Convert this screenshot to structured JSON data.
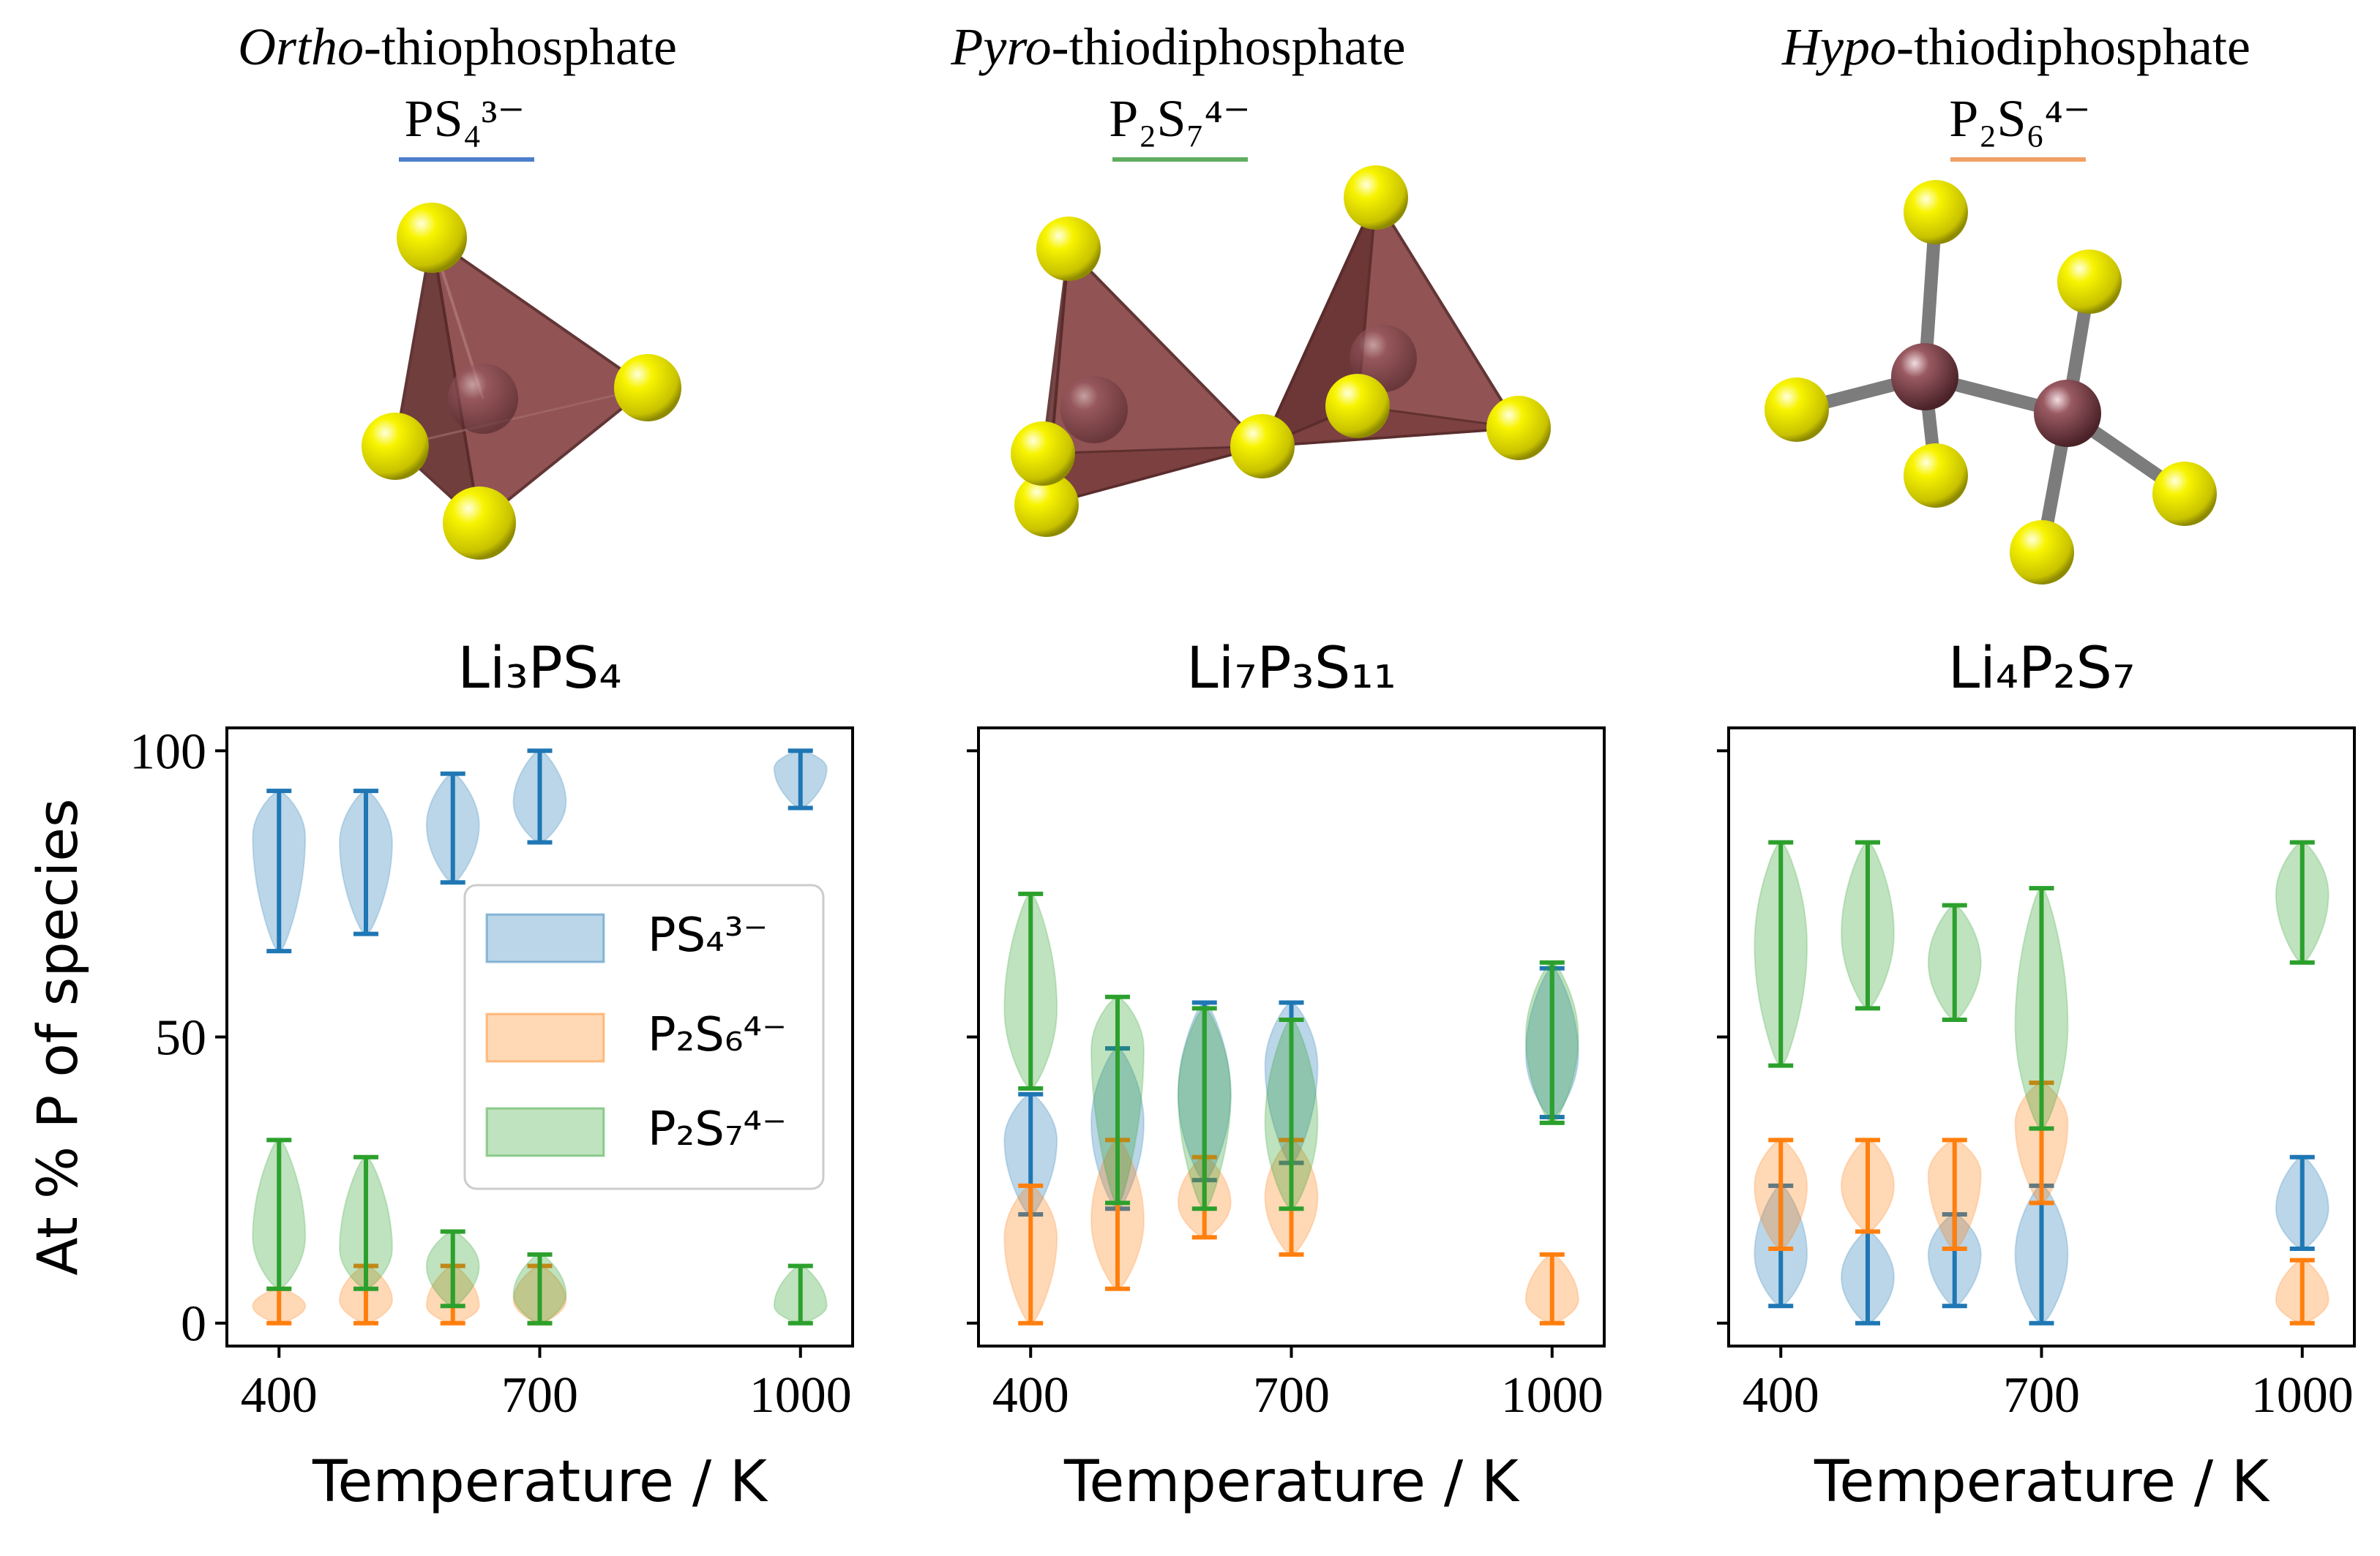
{
  "molecules": [
    {
      "prefix": "Ortho",
      "suffix": "-thiophosphate",
      "formula": "PS₄³⁻",
      "underline_color": "#4d7ecc"
    },
    {
      "prefix": "Pyro",
      "suffix": "-thiodiphosphate",
      "formula": "P₂S₇⁴⁻",
      "underline_color": "#5fae5f"
    },
    {
      "prefix": "Hypo",
      "suffix": "-thiodiphosphate",
      "formula": "P₂S₆⁴⁻",
      "underline_color": "#f0a064"
    }
  ],
  "colors": {
    "PS4": "#1f77b4",
    "P2S6": "#ff7f0e",
    "P2S7": "#2ca02c",
    "sulfur": "#f4f000",
    "phosphorus": "#8a4a52",
    "bond": "#808080"
  },
  "chart_data": [
    {
      "type": "violin",
      "title": "Li₃PS₄",
      "xlabel": "Temperature / K",
      "ylabel": "At % P of species",
      "xticks": [
        400,
        700,
        1000
      ],
      "yticks": [
        0,
        50,
        100
      ],
      "xlim": [
        340,
        1060
      ],
      "ylim": [
        -4,
        104
      ],
      "legend_position": "inside-center",
      "series": [
        {
          "name": "PS₄³⁻",
          "key": "PS4",
          "points": [
            {
              "x": 400,
              "min": 65,
              "max": 93,
              "peak": 85
            },
            {
              "x": 500,
              "min": 68,
              "max": 93,
              "peak": 84
            },
            {
              "x": 600,
              "min": 77,
              "max": 96,
              "peak": 87
            },
            {
              "x": 700,
              "min": 84,
              "max": 100,
              "peak": 91
            },
            {
              "x": 1000,
              "min": 90,
              "max": 100,
              "peak": 97
            }
          ]
        },
        {
          "name": "P₂S₆⁴⁻",
          "key": "P2S6",
          "points": [
            {
              "x": 400,
              "min": 0,
              "max": 6,
              "peak": 3
            },
            {
              "x": 500,
              "min": 0,
              "max": 10,
              "peak": 4
            },
            {
              "x": 600,
              "min": 0,
              "max": 10,
              "peak": 3
            },
            {
              "x": 700,
              "min": 0,
              "max": 10,
              "peak": 4
            }
          ]
        },
        {
          "name": "P₂S₇⁴⁻",
          "key": "P2S7",
          "points": [
            {
              "x": 400,
              "min": 6,
              "max": 32,
              "peak": 15
            },
            {
              "x": 500,
              "min": 6,
              "max": 29,
              "peak": 13
            },
            {
              "x": 600,
              "min": 3,
              "max": 16,
              "peak": 10
            },
            {
              "x": 700,
              "min": 0,
              "max": 12,
              "peak": 5
            },
            {
              "x": 1000,
              "min": 0,
              "max": 10,
              "peak": 3
            }
          ]
        }
      ]
    },
    {
      "type": "violin",
      "title": "Li₇P₃S₁₁",
      "xlabel": "Temperature / K",
      "ylabel": "",
      "xticks": [
        400,
        700,
        1000
      ],
      "yticks": [
        0,
        50,
        100
      ],
      "xlim": [
        340,
        1060
      ],
      "ylim": [
        -4,
        104
      ],
      "series": [
        {
          "name": "PS₄³⁻",
          "key": "PS4",
          "points": [
            {
              "x": 400,
              "min": 19,
              "max": 40,
              "peak": 32
            },
            {
              "x": 500,
              "min": 20,
              "max": 48,
              "peak": 35
            },
            {
              "x": 600,
              "min": 25,
              "max": 56,
              "peak": 40
            },
            {
              "x": 700,
              "min": 28,
              "max": 56,
              "peak": 45
            },
            {
              "x": 1000,
              "min": 36,
              "max": 62,
              "peak": 47
            }
          ]
        },
        {
          "name": "P₂S₆⁴⁻",
          "key": "P2S6",
          "points": [
            {
              "x": 400,
              "min": 0,
              "max": 24,
              "peak": 15
            },
            {
              "x": 500,
              "min": 6,
              "max": 32,
              "peak": 18
            },
            {
              "x": 600,
              "min": 15,
              "max": 29,
              "peak": 21
            },
            {
              "x": 700,
              "min": 12,
              "max": 32,
              "peak": 22
            },
            {
              "x": 1000,
              "min": 0,
              "max": 12,
              "peak": 4
            }
          ]
        },
        {
          "name": "P₂S₇⁴⁻",
          "key": "P2S7",
          "points": [
            {
              "x": 400,
              "min": 41,
              "max": 75,
              "peak": 55
            },
            {
              "x": 500,
              "min": 21,
              "max": 57,
              "peak": 48
            },
            {
              "x": 600,
              "min": 20,
              "max": 55,
              "peak": 40
            },
            {
              "x": 700,
              "min": 20,
              "max": 53,
              "peak": 35
            },
            {
              "x": 1000,
              "min": 35,
              "max": 63,
              "peak": 50
            }
          ]
        }
      ]
    },
    {
      "type": "violin",
      "title": "Li₄P₂S₇",
      "xlabel": "Temperature / K",
      "ylabel": "",
      "xticks": [
        400,
        700,
        1000
      ],
      "yticks": [
        0,
        50,
        100
      ],
      "xlim": [
        340,
        1060
      ],
      "ylim": [
        -4,
        104
      ],
      "series": [
        {
          "name": "PS₄³⁻",
          "key": "PS4",
          "points": [
            {
              "x": 400,
              "min": 3,
              "max": 24,
              "peak": 12
            },
            {
              "x": 500,
              "min": 0,
              "max": 16,
              "peak": 8
            },
            {
              "x": 600,
              "min": 3,
              "max": 19,
              "peak": 12
            },
            {
              "x": 700,
              "min": 0,
              "max": 24,
              "peak": 12
            },
            {
              "x": 1000,
              "min": 13,
              "max": 29,
              "peak": 20
            }
          ]
        },
        {
          "name": "P₂S₆⁴⁻",
          "key": "P2S6",
          "points": [
            {
              "x": 400,
              "min": 13,
              "max": 32,
              "peak": 24
            },
            {
              "x": 500,
              "min": 16,
              "max": 32,
              "peak": 24
            },
            {
              "x": 600,
              "min": 13,
              "max": 32,
              "peak": 26
            },
            {
              "x": 700,
              "min": 21,
              "max": 42,
              "peak": 35
            },
            {
              "x": 1000,
              "min": 0,
              "max": 11,
              "peak": 4
            }
          ]
        },
        {
          "name": "P₂S₇⁴⁻",
          "key": "P2S7",
          "points": [
            {
              "x": 400,
              "min": 45,
              "max": 84,
              "peak": 66
            },
            {
              "x": 500,
              "min": 55,
              "max": 84,
              "peak": 68
            },
            {
              "x": 600,
              "min": 53,
              "max": 73,
              "peak": 63
            },
            {
              "x": 700,
              "min": 34,
              "max": 76,
              "peak": 52
            },
            {
              "x": 1000,
              "min": 63,
              "max": 84,
              "peak": 75
            }
          ]
        }
      ]
    }
  ]
}
